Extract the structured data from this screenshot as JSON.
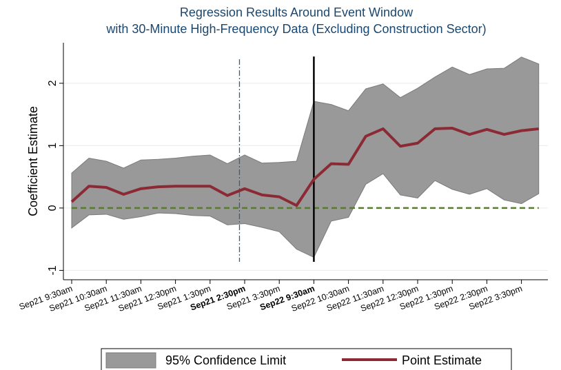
{
  "chart_data": {
    "type": "line",
    "title": "Regression Results Around Event Window",
    "subtitle": "with 30-Minute High-Frequency Data (Excluding Construction Sector)",
    "y_label": "Coefficient Estimate",
    "categories": [
      "Sep21 9:30am",
      null,
      "Sep21 10:30am",
      null,
      "Sep21 11:30am",
      null,
      "Sep21 12:30pm",
      null,
      "Sep21 1:30pm",
      null,
      "Sep21 2:30pm",
      null,
      "Sep21 3:30pm",
      null,
      "Sep22 9:30am",
      null,
      "Sep22 10:30am",
      null,
      "Sep22 11:30am",
      null,
      "Sep22 12:30pm",
      null,
      "Sep22 1:30pm",
      null,
      "Sep22 2:30pm",
      null,
      "Sep22 3:30pm",
      null
    ],
    "bold_categories": [
      10,
      14
    ],
    "series": [
      {
        "name": "95% Confidence Limit",
        "type": "band",
        "color": "#999999",
        "edge_color": "#7a7a7a",
        "upper": [
          0.56,
          0.8,
          0.75,
          0.64,
          0.77,
          0.78,
          0.8,
          0.83,
          0.85,
          0.71,
          0.85,
          0.72,
          0.73,
          0.75,
          1.71,
          1.66,
          1.56,
          1.91,
          1.99,
          1.77,
          1.92,
          2.1,
          2.26,
          2.14,
          2.23,
          2.24,
          2.42,
          2.31
        ],
        "lower": [
          -0.32,
          -0.11,
          -0.1,
          -0.18,
          -0.14,
          -0.08,
          -0.09,
          -0.12,
          -0.13,
          -0.27,
          -0.25,
          -0.31,
          -0.38,
          -0.66,
          -0.79,
          -0.21,
          -0.15,
          0.38,
          0.55,
          0.21,
          0.16,
          0.44,
          0.3,
          0.22,
          0.31,
          0.13,
          0.07,
          0.23
        ]
      },
      {
        "name": "Point Estimate",
        "type": "line",
        "color": "#8b2a35",
        "values": [
          0.1,
          0.35,
          0.33,
          0.22,
          0.31,
          0.34,
          0.35,
          0.35,
          0.35,
          0.2,
          0.31,
          0.21,
          0.18,
          0.04,
          0.46,
          0.71,
          0.7,
          1.15,
          1.27,
          0.99,
          1.04,
          1.27,
          1.28,
          1.18,
          1.26,
          1.18,
          1.24,
          1.27
        ]
      }
    ],
    "reference_line": {
      "value": 0,
      "color": "#5a7a32"
    },
    "event_lines": [
      {
        "position": 9.7,
        "color": "#2f5f7f",
        "style": "dashdot"
      },
      {
        "position": 14,
        "color": "#000000",
        "style": "solid"
      }
    ],
    "ylim": [
      -1.15,
      2.65
    ],
    "yticks": [
      -1,
      0,
      1,
      2
    ],
    "grid": true
  }
}
